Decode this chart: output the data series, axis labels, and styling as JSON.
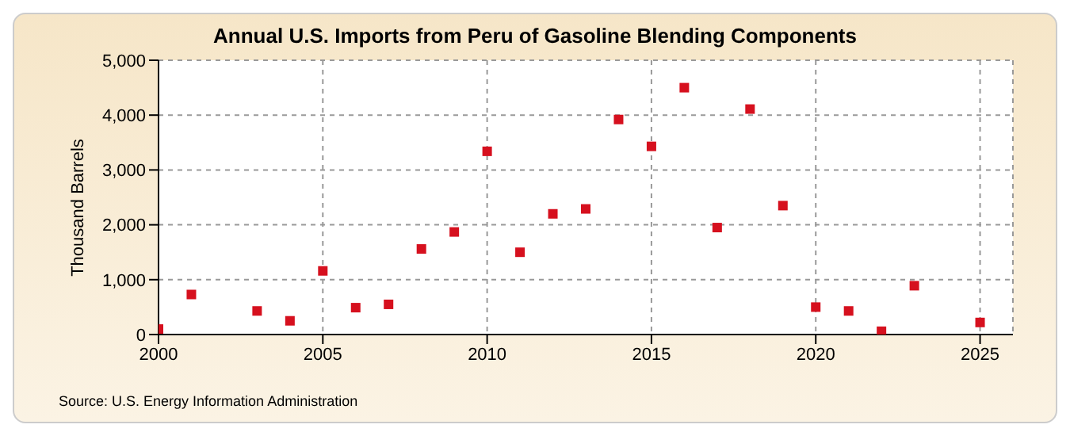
{
  "chart_data": {
    "type": "scatter",
    "title": "Annual U.S. Imports from Peru of Gasoline Blending Components",
    "ylabel": "Thousand Barrels",
    "annotations": [
      "Source: U.S. Energy Information Administration"
    ],
    "x": [
      2000,
      2001,
      2003,
      2004,
      2005,
      2006,
      2007,
      2008,
      2009,
      2010,
      2011,
      2012,
      2013,
      2014,
      2015,
      2016,
      2017,
      2018,
      2019,
      2020,
      2021,
      2022,
      2023,
      2025
    ],
    "series": [
      {
        "color": "#d6101e",
        "values": [
          100,
          730,
          430,
          250,
          1160,
          490,
          550,
          1560,
          1870,
          3340,
          1500,
          2200,
          2290,
          3920,
          3430,
          4500,
          1950,
          4110,
          2350,
          500,
          430,
          60,
          890,
          220
        ]
      }
    ],
    "xlim": [
      2000,
      2026
    ],
    "xticks": [
      2000,
      2005,
      2010,
      2015,
      2020,
      2025
    ],
    "ylim": [
      0,
      5000
    ],
    "yticks": [
      0,
      {
        "value": 1000,
        "label": "1,000"
      },
      {
        "value": 2000,
        "label": "2,000"
      },
      {
        "value": 3000,
        "label": "3,000"
      },
      {
        "value": 4000,
        "label": "4,000"
      },
      {
        "value": 5000,
        "label": "5,000"
      }
    ],
    "grid": true,
    "marker": "square"
  }
}
